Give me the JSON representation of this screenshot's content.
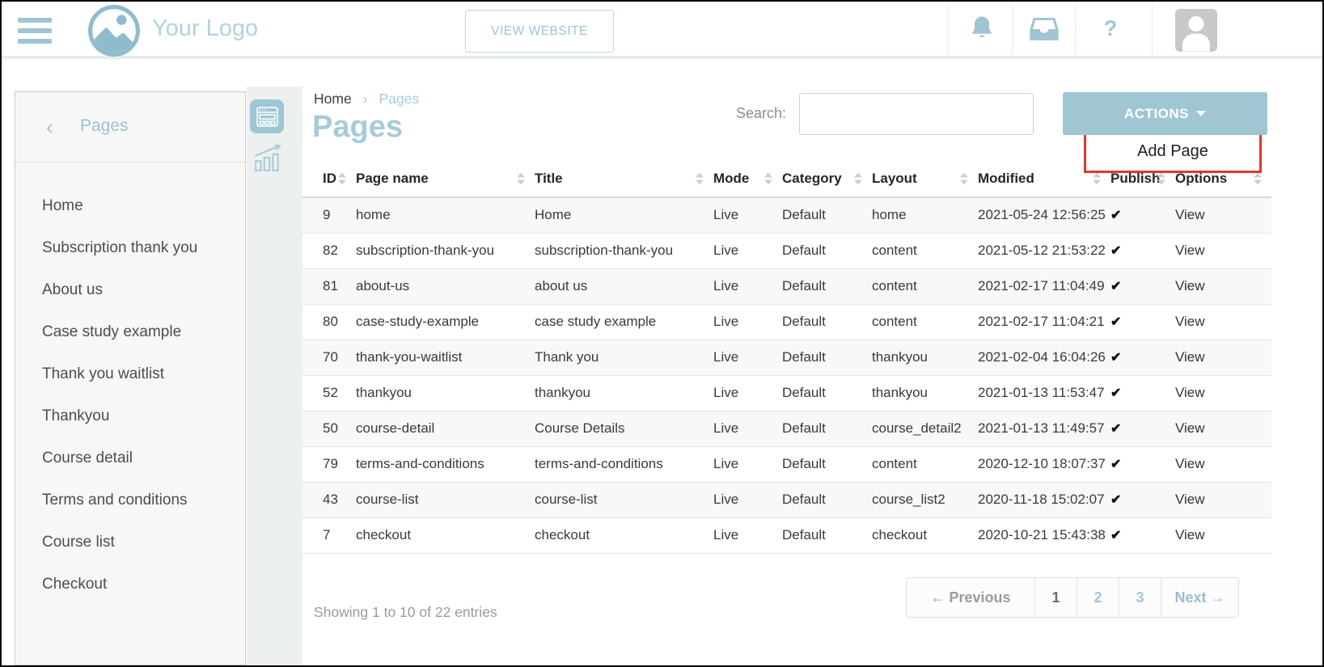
{
  "colors": {
    "accent": "#9fc5d3",
    "annotation_red": "#dd382d"
  },
  "topbar": {
    "logo_text": "Your Logo",
    "view_website_label": "VIEW WEBSITE",
    "help_glyph": "?"
  },
  "sidebar": {
    "back_glyph": "‹",
    "title": "Pages",
    "items": [
      "Home",
      "Subscription thank you",
      "About us",
      "Case study example",
      "Thank you waitlist",
      "Thankyou",
      "Course detail",
      "Terms and conditions",
      "Course list",
      "Checkout"
    ]
  },
  "breadcrumb": {
    "root": "Home",
    "separator": "›",
    "current": "Pages"
  },
  "main": {
    "title": "Pages",
    "search_label": "Search:",
    "search_value": "",
    "actions_label": "ACTIONS",
    "dropdown_item": "Add Page"
  },
  "table": {
    "columns": [
      "ID",
      "Page name",
      "Title",
      "Mode",
      "Category",
      "Layout",
      "Modified",
      "Publish",
      "Options"
    ],
    "rows": [
      {
        "id": "9",
        "page_name": "home",
        "title": "Home",
        "mode": "Live",
        "category": "Default",
        "layout": "home",
        "modified": "2021-05-24 12:56:25",
        "publish": "✔",
        "options": "View"
      },
      {
        "id": "82",
        "page_name": "subscription-thank-you",
        "title": "subscription-thank-you",
        "mode": "Live",
        "category": "Default",
        "layout": "content",
        "modified": "2021-05-12 21:53:22",
        "publish": "✔",
        "options": "View"
      },
      {
        "id": "81",
        "page_name": "about-us",
        "title": "about us",
        "mode": "Live",
        "category": "Default",
        "layout": "content",
        "modified": "2021-02-17 11:04:49",
        "publish": "✔",
        "options": "View"
      },
      {
        "id": "80",
        "page_name": "case-study-example",
        "title": "case study example",
        "mode": "Live",
        "category": "Default",
        "layout": "content",
        "modified": "2021-02-17 11:04:21",
        "publish": "✔",
        "options": "View"
      },
      {
        "id": "70",
        "page_name": "thank-you-waitlist",
        "title": "Thank you",
        "mode": "Live",
        "category": "Default",
        "layout": "thankyou",
        "modified": "2021-02-04 16:04:26",
        "publish": "✔",
        "options": "View"
      },
      {
        "id": "52",
        "page_name": "thankyou",
        "title": "thankyou",
        "mode": "Live",
        "category": "Default",
        "layout": "thankyou",
        "modified": "2021-01-13 11:53:47",
        "publish": "✔",
        "options": "View"
      },
      {
        "id": "50",
        "page_name": "course-detail",
        "title": "Course Details",
        "mode": "Live",
        "category": "Default",
        "layout": "course_detail2",
        "modified": "2021-01-13 11:49:57",
        "publish": "✔",
        "options": "View"
      },
      {
        "id": "79",
        "page_name": "terms-and-conditions",
        "title": "terms-and-conditions",
        "mode": "Live",
        "category": "Default",
        "layout": "content",
        "modified": "2020-12-10 18:07:37",
        "publish": "✔",
        "options": "View"
      },
      {
        "id": "43",
        "page_name": "course-list",
        "title": "course-list",
        "mode": "Live",
        "category": "Default",
        "layout": "course_list2",
        "modified": "2020-11-18 15:02:07",
        "publish": "✔",
        "options": "View"
      },
      {
        "id": "7",
        "page_name": "checkout",
        "title": "checkout",
        "mode": "Live",
        "category": "Default",
        "layout": "checkout",
        "modified": "2020-10-21 15:43:38",
        "publish": "✔",
        "options": "View"
      }
    ]
  },
  "footer": {
    "showing": "Showing 1 to 10 of 22 entries",
    "pagination": {
      "previous": "← Previous",
      "pages": [
        "1",
        "2",
        "3"
      ],
      "current_page": "1",
      "next": "Next →"
    }
  }
}
